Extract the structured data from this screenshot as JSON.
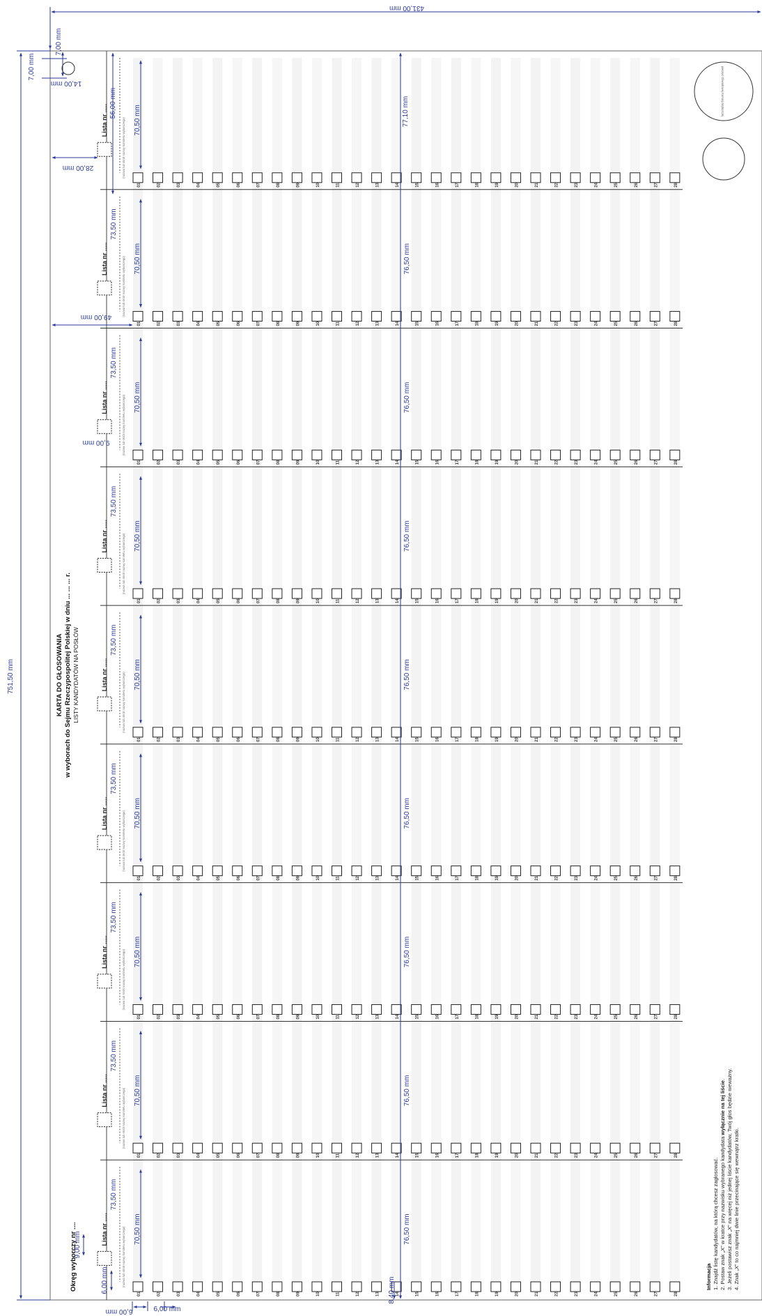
{
  "dimensions": {
    "height_total": "751,50 mm",
    "width_total": "431,00 mm",
    "top_margin": "7,00 mm",
    "circle_width": "14,00 mm",
    "circle_offset": "7,00 mm",
    "first_box_offset": "28,00 mm",
    "first_section_height": "56,00 mm",
    "section_height": "73,50 mm",
    "inner_column": "70,50 mm",
    "box_offset_second": "49,00 mm",
    "checkbox_size": "9,00 mm",
    "first_col_width": "77,10 mm",
    "col_width": "76,50 mm",
    "bottom_spacing": "8,40 mm",
    "row_height_a": "6,00 mm",
    "row_height_b": "6,00 mm",
    "row_height_c": "6,00 mm",
    "left_box_size": "9,00 mm"
  },
  "ballot": {
    "title": "KARTA DO GŁOSOWANIA",
    "subtitle_bold": "w wyborach do Sejmu Rzeczypospolitej Polskiej w dniu ... ... ... r.",
    "subtitle": "LISTY KANDYDATÓW NA POSŁÓW",
    "district": "Okręg wyborczy nr ....",
    "list_label": "Lista nr .....",
    "list_caption": "(nazwa lub skrót nazwy komitetu wyborczego)",
    "stamp_label": "pieczęć Obwodowej Komisji Wyborczej"
  },
  "rows": [
    "01",
    "02",
    "03",
    "04",
    "05",
    "06",
    "07",
    "08",
    "09",
    "10",
    "11",
    "12",
    "13",
    "14",
    "15",
    "16",
    "17",
    "18",
    "19",
    "20",
    "21",
    "22",
    "23",
    "24",
    "25",
    "26",
    "27",
    "28"
  ],
  "sections_count": 9,
  "info": {
    "heading": "Informacja",
    "line1": "1. Znajdź listę kandydatów, na którą chcesz zagłosować.",
    "line2_pre": "2. Postaw znak „X” w kratce przy nazwisku wybranego kandydata ",
    "line2_bold": "wyłącznie na tej liście",
    "line2_post": ".",
    "line3": "3. Jeżeli postawisz znak „X” na więcej niż jednej liście kandydatów, Twój głos będzie nieważny.",
    "line4": "4. Znak „X” to co najmniej dwie linie przecinające się wewnątrz kratki."
  }
}
